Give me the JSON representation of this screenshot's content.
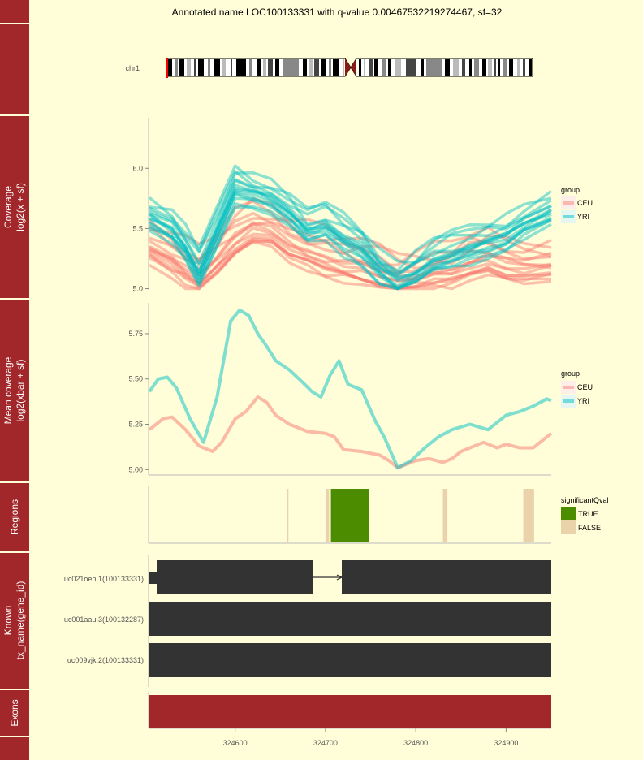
{
  "title": "Annotated name LOC100133331 with q-value 0.00467532219274467, sf=32",
  "colors": {
    "strip": "#a2272a",
    "background": "#fffed9",
    "ceu": "#f8766d",
    "yri": "#00bfc4",
    "sig_true": "#4b8c00",
    "sig_false": "#ead3aa",
    "gene": "#333333"
  },
  "ideogram": {
    "chrom": "chr1"
  },
  "x_axis": {
    "ticks": [
      "324600",
      "324700",
      "324800",
      "324900"
    ],
    "values": [
      324600,
      324700,
      324800,
      324900
    ],
    "range": [
      324505,
      324950
    ]
  },
  "chart_data": [
    {
      "type": "line",
      "panel_label": [
        "Coverage",
        "log2(x + sf)"
      ],
      "yticks": [
        "5.0",
        "5.5",
        "6.0"
      ],
      "ytick_values": [
        5.0,
        5.5,
        6.0
      ],
      "ylim": [
        4.99,
        6.42
      ],
      "legend": {
        "title": "group",
        "labels": [
          "CEU",
          "YRI"
        ]
      },
      "series": [
        {
          "name": "CEU",
          "x": [
            324505,
            324530,
            324545,
            324560,
            324580,
            324600,
            324620,
            324640,
            324660,
            324680,
            324700,
            324720,
            324740,
            324760,
            324780,
            324800,
            324820,
            324840,
            324860,
            324880,
            324900,
            324920,
            324950
          ],
          "values": [
            5.3,
            5.2,
            5.12,
            5.05,
            5.2,
            5.35,
            5.45,
            5.42,
            5.32,
            5.25,
            5.2,
            5.15,
            5.12,
            5.08,
            5.03,
            5.05,
            5.08,
            5.1,
            5.15,
            5.2,
            5.15,
            5.12,
            5.15
          ]
        },
        {
          "name": "YRI",
          "x": [
            324505,
            324530,
            324545,
            324560,
            324580,
            324600,
            324620,
            324640,
            324660,
            324680,
            324700,
            324720,
            324740,
            324760,
            324780,
            324800,
            324820,
            324840,
            324860,
            324880,
            324900,
            324920,
            324950
          ],
          "values": [
            5.55,
            5.45,
            5.3,
            5.1,
            5.45,
            5.8,
            5.75,
            5.7,
            5.6,
            5.45,
            5.5,
            5.38,
            5.3,
            5.12,
            5.02,
            5.1,
            5.2,
            5.25,
            5.3,
            5.35,
            5.4,
            5.5,
            5.6
          ]
        }
      ]
    },
    {
      "type": "line",
      "panel_label": [
        "Mean coverage",
        "log2(xbar + sf)"
      ],
      "yticks": [
        "5.00",
        "5.25",
        "5.50",
        "5.75"
      ],
      "ytick_values": [
        5.0,
        5.25,
        5.5,
        5.75
      ],
      "ylim": [
        4.97,
        5.92
      ],
      "legend": {
        "title": "group",
        "labels": [
          "CEU",
          "YRI"
        ]
      },
      "series": [
        {
          "name": "CEU",
          "x": [
            324505,
            324520,
            324530,
            324545,
            324560,
            324575,
            324585,
            324600,
            324612,
            324625,
            324635,
            324645,
            324660,
            324680,
            324700,
            324710,
            324720,
            324740,
            324760,
            324770,
            324780,
            324790,
            324800,
            324815,
            324830,
            324840,
            324850,
            324860,
            324875,
            324890,
            324900,
            324915,
            324930,
            324950
          ],
          "values": [
            5.22,
            5.28,
            5.29,
            5.22,
            5.13,
            5.1,
            5.15,
            5.28,
            5.32,
            5.4,
            5.37,
            5.3,
            5.25,
            5.21,
            5.2,
            5.18,
            5.11,
            5.1,
            5.08,
            5.05,
            5.01,
            5.03,
            5.05,
            5.06,
            5.04,
            5.06,
            5.1,
            5.12,
            5.15,
            5.12,
            5.14,
            5.12,
            5.12,
            5.2
          ]
        },
        {
          "name": "YRI",
          "x": [
            324505,
            324515,
            324525,
            324535,
            324550,
            324565,
            324580,
            324595,
            324605,
            324615,
            324625,
            324635,
            324645,
            324660,
            324675,
            324685,
            324695,
            324705,
            324715,
            324725,
            324740,
            324755,
            324765,
            324780,
            324795,
            324810,
            324825,
            324840,
            324860,
            324880,
            324900,
            324915,
            324930,
            324945,
            324950
          ],
          "values": [
            5.43,
            5.5,
            5.51,
            5.45,
            5.28,
            5.15,
            5.4,
            5.82,
            5.88,
            5.85,
            5.75,
            5.68,
            5.6,
            5.55,
            5.48,
            5.43,
            5.4,
            5.52,
            5.6,
            5.47,
            5.44,
            5.27,
            5.18,
            5.01,
            5.05,
            5.12,
            5.18,
            5.22,
            5.25,
            5.22,
            5.3,
            5.32,
            5.35,
            5.39,
            5.38
          ]
        }
      ]
    },
    {
      "type": "bar",
      "panel_label": [
        "Regions"
      ],
      "legend": {
        "title": "significantQval",
        "labels": [
          "TRUE",
          "FALSE"
        ]
      },
      "regions": [
        {
          "start": 324657,
          "end": 324659,
          "significant": false
        },
        {
          "start": 324700,
          "end": 324704,
          "significant": false
        },
        {
          "start": 324706,
          "end": 324748,
          "significant": true
        },
        {
          "start": 324830,
          "end": 324835,
          "significant": false
        },
        {
          "start": 324919,
          "end": 324931,
          "significant": false
        }
      ]
    }
  ],
  "transcripts": {
    "panel_label": [
      "Known",
      "tx_name(gene_id)"
    ],
    "rows": [
      {
        "label": "uc021oeh.1(100133331)"
      },
      {
        "label": "uc001aau.3(100132287)"
      },
      {
        "label": "uc009vjk.2(100133331)"
      }
    ]
  },
  "exons": {
    "panel_label": [
      "Exons"
    ]
  }
}
